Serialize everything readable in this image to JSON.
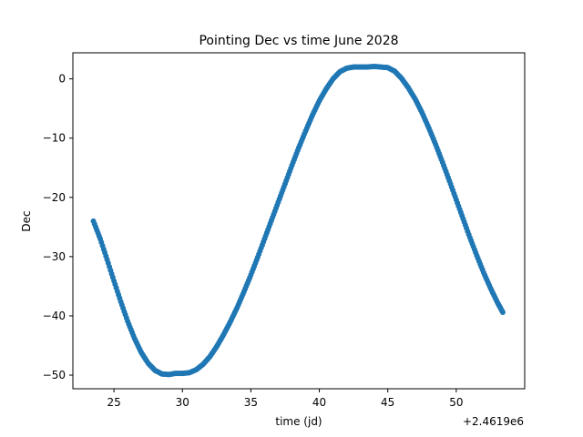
{
  "chart_data": {
    "type": "scatter",
    "title": "Pointing Dec vs time June 2028",
    "xlabel": "time (jd)",
    "ylabel": "Dec",
    "x_offset_label": "+2.4619e6",
    "xlim": [
      2461922.0,
      2461955.0
    ],
    "ylim": [
      -52.3,
      4.4
    ],
    "xticks": [
      2461925,
      2461930,
      2461935,
      2461940,
      2461945,
      2461950
    ],
    "xtick_labels": [
      "25",
      "30",
      "35",
      "40",
      "45",
      "50"
    ],
    "yticks": [
      0,
      -10,
      -20,
      -30,
      -40,
      -50
    ],
    "ytick_labels": [
      "0",
      "−10",
      "−20",
      "−30",
      "−40",
      "−50"
    ],
    "grid": false,
    "series": [
      {
        "color": "#1f77b4",
        "x": [
          2461923.5,
          2461924.0,
          2461924.5,
          2461925.0,
          2461925.5,
          2461926.0,
          2461926.5,
          2461927.0,
          2461927.5,
          2461928.0,
          2461928.5,
          2461929.0,
          2461929.5,
          2461930.0,
          2461930.5,
          2461931.0,
          2461931.5,
          2461932.0,
          2461932.5,
          2461933.0,
          2461933.5,
          2461934.0,
          2461934.5,
          2461935.0,
          2461935.5,
          2461936.0,
          2461936.5,
          2461937.0,
          2461937.5,
          2461938.0,
          2461938.5,
          2461939.0,
          2461939.5,
          2461940.0,
          2461940.5,
          2461941.0,
          2461941.5,
          2461942.0,
          2461942.5,
          2461943.0,
          2461943.5,
          2461944.0,
          2461944.5,
          2461945.0,
          2461945.5,
          2461946.0,
          2461946.5,
          2461947.0,
          2461947.5,
          2461948.0,
          2461948.5,
          2461949.0,
          2461949.5,
          2461950.0,
          2461950.5,
          2461951.0,
          2461951.5,
          2461952.0,
          2461952.5,
          2461953.0,
          2461953.4
        ],
        "y": [
          -24.0,
          -27.0,
          -30.5,
          -34.1,
          -37.6,
          -40.9,
          -43.8,
          -46.2,
          -48.0,
          -49.2,
          -49.8,
          -49.9,
          -49.7,
          -49.7,
          -49.6,
          -49.1,
          -48.2,
          -46.9,
          -45.2,
          -43.2,
          -41.0,
          -38.6,
          -35.9,
          -33.1,
          -30.1,
          -27.0,
          -23.9,
          -20.8,
          -17.7,
          -14.6,
          -11.6,
          -8.8,
          -6.1,
          -3.7,
          -1.7,
          0.0,
          1.2,
          1.8,
          2.0,
          2.0,
          2.0,
          2.1,
          2.0,
          1.9,
          1.3,
          0.1,
          -1.5,
          -3.4,
          -5.7,
          -8.3,
          -11.1,
          -14.1,
          -17.2,
          -20.4,
          -23.6,
          -26.8,
          -29.8,
          -32.7,
          -35.3,
          -37.7,
          -39.4
        ]
      }
    ]
  }
}
